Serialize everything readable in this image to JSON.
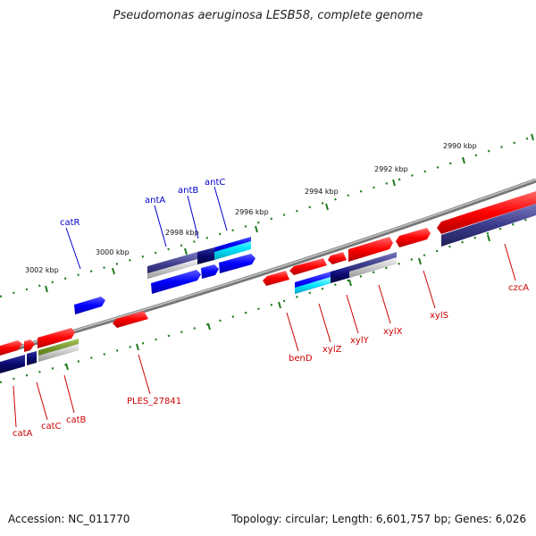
{
  "title": "Pseudomonas aeruginosa LESB58, complete genome",
  "footer": {
    "accession": "Accession: NC_011770",
    "topology": "Topology: circular; Length: 6,601,757 bp; Genes: 6,026"
  },
  "colors": {
    "forward_gene": "#ff0000",
    "reverse_gene": "#0000ff",
    "cds_dark": "#3a3a8a",
    "cds_navy": "#0a0a70",
    "cds_cyan": "#00e5ff",
    "cds_olive": "#6b8e23",
    "cds_grey": "#c8c8c8",
    "backbone": "#888888",
    "tick": "#1f7a1f",
    "label_red": "#cc0000",
    "label_blue": "#0000cc"
  },
  "kbp_labels": [
    "3002 kbp",
    "3000 kbp",
    "2998 kbp",
    "2996 kbp",
    "2994 kbp",
    "2992 kbp",
    "2990 kbp"
  ],
  "genes_top": [
    "catR",
    "antA",
    "antB",
    "antC"
  ],
  "genes_bottom": [
    "catA",
    "catC",
    "catB",
    "PLES_27841",
    "benD",
    "xylZ",
    "xylY",
    "xylX",
    "xylS",
    "czcA"
  ]
}
